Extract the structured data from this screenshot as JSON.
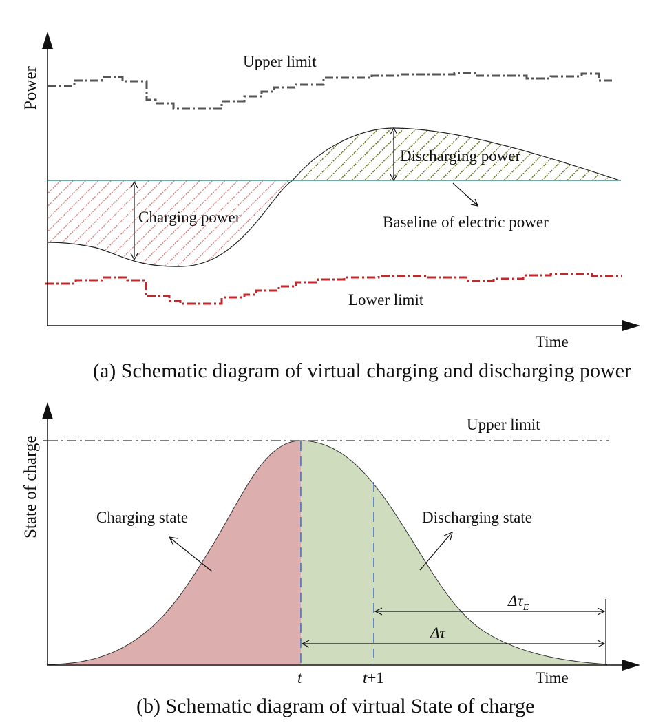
{
  "panel_a": {
    "y_axis_label": "Power",
    "x_axis_label": "Time",
    "upper_limit_label": "Upper limit",
    "lower_limit_label": "Lower limit",
    "charging_label": "Charging power",
    "discharging_label": "Discharging power",
    "baseline_label": "Baseline of electric power",
    "caption": "(a) Schematic diagram of virtual charging and discharging power"
  },
  "panel_b": {
    "y_axis_label": "State of charge",
    "x_axis_label": "Time",
    "upper_limit_label": "Upper limit",
    "charging_state_label": "Charging state",
    "discharging_state_label": "Discharging state",
    "tick_t": "t",
    "tick_t1_var": "t",
    "tick_t1_suffix": "+1",
    "delta_tau_label": "Δτ",
    "delta_tau_e_label": "Δτ",
    "delta_tau_e_subscript": "E",
    "caption": "(b) Schematic diagram of virtual State of charge"
  },
  "colors": {
    "upper_limit_line": "#555555",
    "lower_limit_line": "#c0282b",
    "charging_hatch": "#d98a8a",
    "discharging_hatch": "#6f7a2a",
    "baseline": "#3f8f8a",
    "charging_fill": "#dcaeae",
    "discharging_fill": "#cfdcbd",
    "dashed_marker": "#3a66c4"
  }
}
